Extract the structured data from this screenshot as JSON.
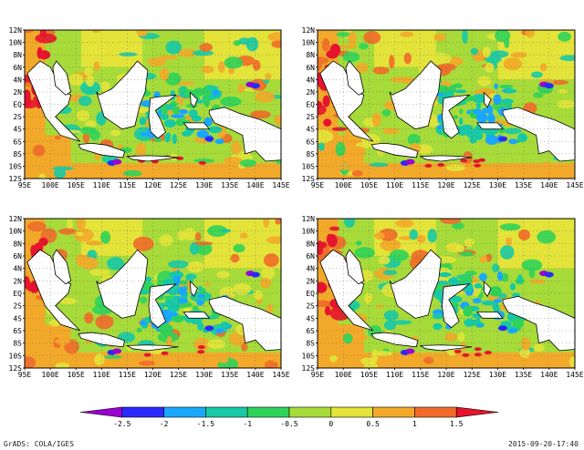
{
  "chart_data": {
    "type": "heatmap",
    "panels": [
      {
        "name": "",
        "blob_seed": 11
      },
      {
        "name": "",
        "blob_seed": 27
      },
      {
        "name": "",
        "blob_seed": 43
      },
      {
        "name": "",
        "blob_seed": 59
      }
    ],
    "x_ticks": [
      "95E",
      "100E",
      "105E",
      "110E",
      "115E",
      "120E",
      "125E",
      "130E",
      "135E",
      "140E",
      "145E"
    ],
    "y_ticks": [
      "12N",
      "10N",
      "8N",
      "6N",
      "4N",
      "2N",
      "EQ",
      "2S",
      "4S",
      "6S",
      "8S",
      "10S",
      "12S"
    ],
    "xlim": [
      95,
      145
    ],
    "ylim": [
      -12,
      12
    ],
    "colorbar": {
      "ticks": [
        "-2.5",
        "-2",
        "-1.5",
        "-1",
        "-0.5",
        "0",
        "0.5",
        "1",
        "1.5"
      ],
      "colors": [
        "#9b00d2",
        "#2a2aff",
        "#1aa7ff",
        "#17c9a6",
        "#2fd35a",
        "#a6db3a",
        "#e3e33a",
        "#f2a92a",
        "#f06b2a",
        "#e6142e"
      ]
    },
    "land_color": "#ffffff",
    "grid": true
  },
  "footer": {
    "left": "GrADS: COLA/IGES",
    "right": "2015-09-20-17:40"
  }
}
